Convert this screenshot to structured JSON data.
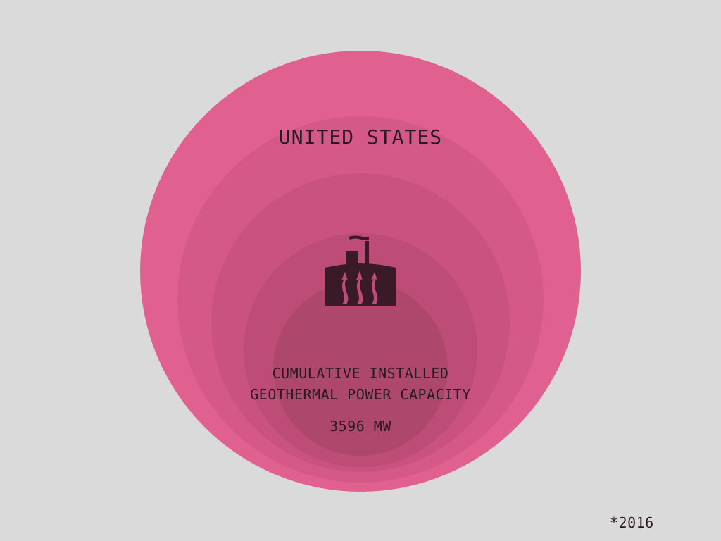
{
  "colors": {
    "background": "#dadada",
    "circle_outer": "#e0608f",
    "circle_2": "#d45986",
    "circle_3": "#c9537e",
    "circle_4": "#bd4d76",
    "circle_inner": "#ad486c",
    "icon": "#3a1a27"
  },
  "icon": "geothermal-plant-icon",
  "title": "UNITED STATES",
  "caption_line1": "CUMULATIVE INSTALLED",
  "caption_line2": "GEOTHERMAL POWER CAPACITY",
  "capacity": "3596 MW",
  "footnote": "*2016"
}
